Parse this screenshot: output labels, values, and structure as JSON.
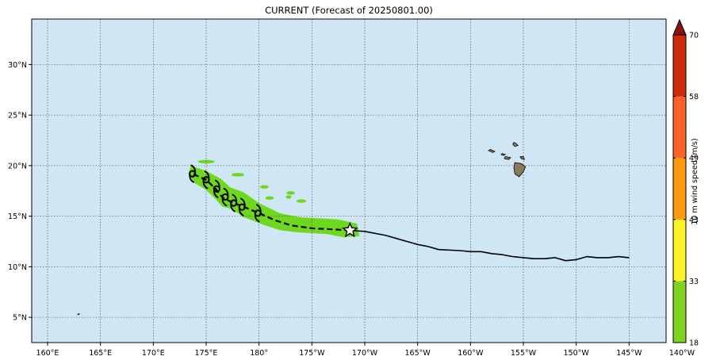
{
  "title": "CURRENT (Forecast of 20250801.00)",
  "colors": {
    "ocean": "#cfe6f5",
    "grid": "#3a3a3a",
    "swath": "#6ed81e",
    "track": "#000000",
    "land_hawaii": "#8a7a5a"
  },
  "map": {
    "lon_range": [
      158.5,
      218.5
    ],
    "lat_range": [
      2.5,
      34.5
    ],
    "grid": true,
    "lon_ticks": [
      {
        "lon": 160,
        "label": "160°E"
      },
      {
        "lon": 165,
        "label": "165°E"
      },
      {
        "lon": 170,
        "label": "170°E"
      },
      {
        "lon": 175,
        "label": "175°E"
      },
      {
        "lon": 180,
        "label": "180°"
      },
      {
        "lon": 185,
        "label": "175°W"
      },
      {
        "lon": 190,
        "label": "170°W"
      },
      {
        "lon": 195,
        "label": "165°W"
      },
      {
        "lon": 200,
        "label": "160°W"
      },
      {
        "lon": 205,
        "label": "155°W"
      },
      {
        "lon": 210,
        "label": "150°W"
      },
      {
        "lon": 215,
        "label": "145°W"
      },
      {
        "lon": 220,
        "label": "140°W"
      }
    ],
    "lat_ticks": [
      {
        "lat": 5,
        "label": "5°N"
      },
      {
        "lat": 10,
        "label": "10°N"
      },
      {
        "lat": 15,
        "label": "15°N"
      },
      {
        "lat": 20,
        "label": "20°N"
      },
      {
        "lat": 25,
        "label": "25°N"
      },
      {
        "lat": 30,
        "label": "30°N"
      }
    ]
  },
  "track_observed": [
    [
      215.0,
      10.9
    ],
    [
      214.0,
      11.0
    ],
    [
      213.0,
      10.9
    ],
    [
      212.0,
      10.9
    ],
    [
      211.0,
      11.0
    ],
    [
      210.0,
      10.7
    ],
    [
      209.0,
      10.6
    ],
    [
      208.0,
      10.9
    ],
    [
      207.0,
      10.8
    ],
    [
      206.0,
      10.8
    ],
    [
      205.0,
      10.9
    ],
    [
      204.0,
      11.0
    ],
    [
      203.0,
      11.2
    ],
    [
      202.0,
      11.3
    ],
    [
      201.0,
      11.5
    ],
    [
      200.0,
      11.5
    ],
    [
      199.0,
      11.6
    ],
    [
      197.0,
      11.7
    ],
    [
      196.0,
      12.0
    ],
    [
      195.0,
      12.2
    ],
    [
      194.0,
      12.5
    ],
    [
      193.0,
      12.8
    ],
    [
      192.0,
      13.1
    ],
    [
      191.0,
      13.3
    ],
    [
      190.0,
      13.5
    ],
    [
      188.6,
      13.6
    ]
  ],
  "track_forecast": [
    [
      188.6,
      13.6
    ],
    [
      187.0,
      13.7
    ],
    [
      185.0,
      13.8
    ],
    [
      183.0,
      14.1
    ],
    [
      181.5,
      14.6
    ],
    [
      180.0,
      15.3
    ],
    [
      178.6,
      15.9
    ],
    [
      177.6,
      16.3
    ],
    [
      176.6,
      16.8
    ],
    [
      175.9,
      17.7
    ],
    [
      175.0,
      18.6
    ],
    [
      173.7,
      19.2
    ]
  ],
  "current_position": [
    188.6,
    13.6
  ],
  "storm_symbols": [
    [
      173.7,
      19.2
    ],
    [
      175.0,
      18.6
    ],
    [
      176.0,
      17.7
    ],
    [
      176.8,
      16.9
    ],
    [
      177.6,
      16.3
    ],
    [
      178.4,
      15.9
    ],
    [
      179.9,
      15.3
    ]
  ],
  "swath": [
    [
      173.6,
      19.9
    ],
    [
      175.0,
      19.4
    ],
    [
      176.4,
      18.6
    ],
    [
      177.2,
      17.8
    ],
    [
      178.5,
      17.3
    ],
    [
      180.0,
      16.2
    ],
    [
      182.0,
      15.2
    ],
    [
      184.0,
      14.8
    ],
    [
      186.0,
      14.7
    ],
    [
      187.5,
      14.6
    ],
    [
      189.2,
      14.2
    ],
    [
      189.4,
      13.1
    ],
    [
      188.0,
      13.0
    ],
    [
      186.5,
      13.3
    ],
    [
      185.0,
      13.4
    ],
    [
      183.5,
      13.5
    ],
    [
      182.0,
      13.7
    ],
    [
      180.5,
      14.2
    ],
    [
      179.3,
      14.7
    ],
    [
      178.5,
      15.0
    ],
    [
      177.5,
      15.8
    ],
    [
      176.6,
      16.0
    ],
    [
      176.0,
      16.7
    ],
    [
      175.0,
      17.7
    ],
    [
      174.0,
      18.3
    ],
    [
      173.4,
      19.2
    ]
  ],
  "islands": [
    [
      [
        204.1,
        22.3
      ],
      [
        204.3,
        22.2
      ],
      [
        204.5,
        22.0
      ],
      [
        204.2,
        21.9
      ],
      [
        204.0,
        22.1
      ]
    ],
    [
      [
        201.9,
        21.6
      ],
      [
        202.3,
        21.4
      ],
      [
        202.1,
        21.3
      ],
      [
        201.7,
        21.5
      ]
    ],
    [
      [
        203.0,
        21.2
      ],
      [
        203.3,
        21.1
      ],
      [
        203.1,
        21.0
      ],
      [
        202.9,
        21.1
      ]
    ],
    [
      [
        203.3,
        20.9
      ],
      [
        203.8,
        20.8
      ],
      [
        203.6,
        20.6
      ],
      [
        203.2,
        20.7
      ]
    ],
    [
      [
        204.2,
        20.3
      ],
      [
        204.8,
        20.2
      ],
      [
        205.2,
        19.9
      ],
      [
        205.0,
        19.4
      ],
      [
        204.6,
        18.9
      ],
      [
        204.2,
        19.2
      ],
      [
        204.1,
        19.8
      ]
    ],
    [
      [
        204.7,
        20.9
      ],
      [
        205.0,
        20.9
      ],
      [
        205.1,
        20.6
      ],
      [
        204.8,
        20.7
      ]
    ],
    [
      [
        162.85,
        5.3
      ],
      [
        163.0,
        5.35
      ],
      [
        162.95,
        5.25
      ]
    ]
  ],
  "colorbar": {
    "label": "10 m wind speed (m/s)",
    "levels": [
      {
        "value": 18,
        "label": "18"
      },
      {
        "value": 33,
        "label": "33"
      },
      {
        "value": 43,
        "label": "43"
      },
      {
        "value": 49,
        "label": "49"
      },
      {
        "value": 58,
        "label": "58"
      },
      {
        "value": 70,
        "label": "70"
      }
    ],
    "colors": [
      "#7ed321",
      "#fff228",
      "#ff9a10",
      "#ff6128",
      "#cc2a08"
    ],
    "extend_color": "#8b1010"
  }
}
